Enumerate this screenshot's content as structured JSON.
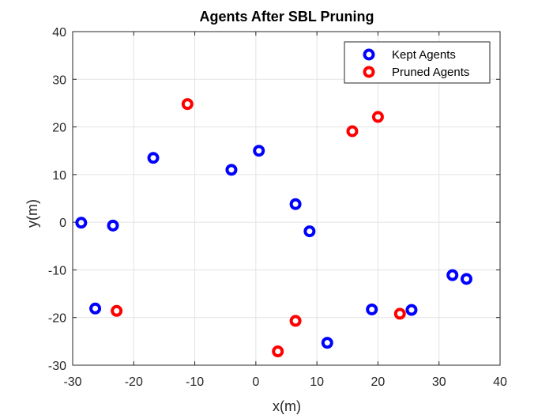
{
  "chart_data": {
    "type": "scatter",
    "title": "Agents After SBL Pruning",
    "xlabel": "x(m)",
    "ylabel": "y(m)",
    "xlim": [
      -30,
      40
    ],
    "ylim": [
      -30,
      40
    ],
    "xticks": [
      -30,
      -20,
      -10,
      0,
      10,
      20,
      30,
      40
    ],
    "yticks": [
      -30,
      -20,
      -10,
      0,
      10,
      20,
      30,
      40
    ],
    "grid": true,
    "legend_position": "top-right",
    "series": [
      {
        "name": "Kept Agents",
        "color": "#0000ff",
        "points": [
          {
            "x": -28.6,
            "y": -0.1
          },
          {
            "x": -23.4,
            "y": -0.7
          },
          {
            "x": -26.3,
            "y": -18.1
          },
          {
            "x": -16.8,
            "y": 13.5
          },
          {
            "x": -4.0,
            "y": 11.0
          },
          {
            "x": 0.5,
            "y": 15.0
          },
          {
            "x": 6.5,
            "y": 3.8
          },
          {
            "x": 8.8,
            "y": -1.9
          },
          {
            "x": 11.7,
            "y": -25.3
          },
          {
            "x": 19.0,
            "y": -18.3
          },
          {
            "x": 25.5,
            "y": -18.4
          },
          {
            "x": 32.2,
            "y": -11.1
          },
          {
            "x": 34.5,
            "y": -11.9
          }
        ]
      },
      {
        "name": "Pruned Agents",
        "color": "#ff0000",
        "points": [
          {
            "x": -11.2,
            "y": 24.8
          },
          {
            "x": 15.8,
            "y": 19.1
          },
          {
            "x": 20.0,
            "y": 22.1
          },
          {
            "x": -22.8,
            "y": -18.6
          },
          {
            "x": 6.5,
            "y": -20.7
          },
          {
            "x": 3.6,
            "y": -27.1
          },
          {
            "x": 23.6,
            "y": -19.2
          }
        ]
      }
    ]
  }
}
